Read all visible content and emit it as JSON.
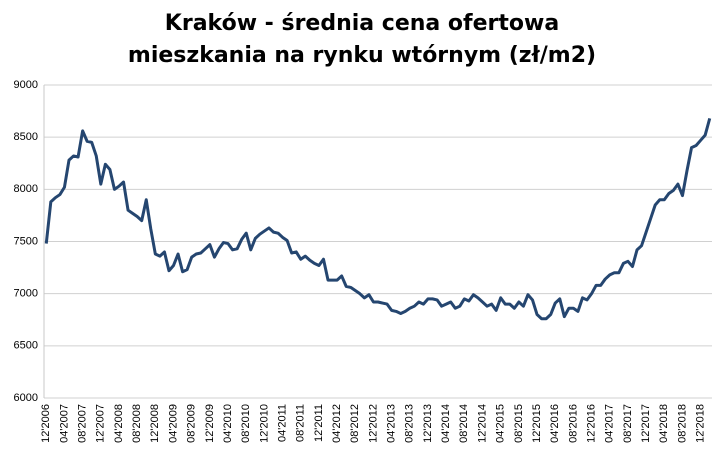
{
  "chart_data": {
    "type": "line",
    "title": "Kraków - średnia cena ofertowa mieszkania na rynku wtórnym (zł/m2)",
    "categories": [
      "12'2006",
      null,
      null,
      null,
      "04'2007",
      null,
      null,
      null,
      "08'2007",
      null,
      null,
      null,
      "12'2007",
      null,
      null,
      null,
      "04'2008",
      null,
      null,
      null,
      "08'2008",
      null,
      null,
      null,
      "12'2008",
      null,
      null,
      null,
      "04'2009",
      null,
      null,
      null,
      "08'2009",
      null,
      null,
      null,
      "12'2009",
      null,
      null,
      null,
      "04'2010",
      null,
      null,
      null,
      "08'2010",
      null,
      null,
      null,
      "12'2010",
      null,
      null,
      null,
      "04'2011",
      null,
      null,
      null,
      "08'2011",
      null,
      null,
      null,
      "12'2011",
      null,
      null,
      null,
      "04'2012",
      null,
      null,
      null,
      "08'2012",
      null,
      null,
      null,
      "12'2012",
      null,
      null,
      null,
      "04'2013",
      null,
      null,
      null,
      "08'2013",
      null,
      null,
      null,
      "12'2013",
      null,
      null,
      null,
      "04'2014",
      null,
      null,
      null,
      "08'2014",
      null,
      null,
      null,
      "12'2014",
      null,
      null,
      null,
      "04'2015",
      null,
      null,
      null,
      "08'2015",
      null,
      null,
      null,
      "12'2015",
      null,
      null,
      null,
      "04'2016",
      null,
      null,
      null,
      "08'2016",
      null,
      null,
      null,
      "12'2016",
      null,
      null,
      null,
      "04'2017",
      null,
      null,
      null,
      "08'2017",
      null,
      null,
      null,
      "12'2017",
      null,
      null,
      null,
      "04'2018",
      null,
      null,
      null,
      "08'2018",
      null,
      null,
      null,
      "12'2018",
      null,
      null
    ],
    "values": [
      7480,
      7880,
      7920,
      7950,
      8020,
      8280,
      8320,
      8310,
      8560,
      8460,
      8450,
      8320,
      8050,
      8240,
      8190,
      8000,
      8030,
      8070,
      7800,
      7770,
      7740,
      7700,
      7900,
      7620,
      7380,
      7360,
      7400,
      7220,
      7270,
      7380,
      7210,
      7230,
      7350,
      7380,
      7390,
      7430,
      7470,
      7350,
      7430,
      7490,
      7480,
      7420,
      7430,
      7520,
      7580,
      7420,
      7530,
      7570,
      7600,
      7630,
      7590,
      7580,
      7540,
      7510,
      7390,
      7400,
      7330,
      7360,
      7320,
      7290,
      7270,
      7330,
      7130,
      7130,
      7130,
      7170,
      7070,
      7060,
      7030,
      7000,
      6960,
      6990,
      6920,
      6920,
      6910,
      6900,
      6840,
      6830,
      6810,
      6830,
      6860,
      6880,
      6920,
      6900,
      6950,
      6950,
      6940,
      6880,
      6900,
      6920,
      6860,
      6880,
      6950,
      6930,
      6990,
      6960,
      6920,
      6880,
      6900,
      6840,
      6960,
      6900,
      6900,
      6860,
      6920,
      6880,
      6990,
      6940,
      6800,
      6760,
      6760,
      6800,
      6910,
      6950,
      6780,
      6860,
      6860,
      6830,
      6960,
      6940,
      7000,
      7080,
      7080,
      7140,
      7180,
      7200,
      7200,
      7290,
      7310,
      7260,
      7420,
      7460,
      7590,
      7720,
      7850,
      7900,
      7900,
      7960,
      7990,
      8050,
      7940,
      8180,
      8400,
      8420,
      8470,
      8520,
      8680
    ],
    "color": "#254670",
    "ylim": [
      6000,
      9000
    ],
    "yticks": [
      6000,
      6500,
      7000,
      7500,
      8000,
      8500,
      9000
    ],
    "grid": true
  }
}
